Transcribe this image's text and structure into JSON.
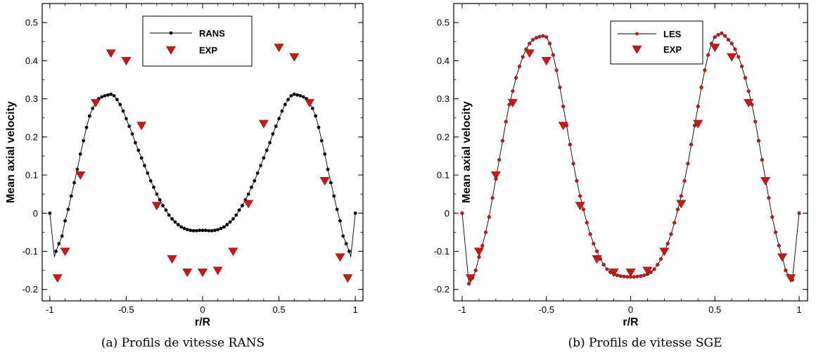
{
  "chart_data": [
    {
      "type": "line",
      "caption": "(a) Profils de vitesse RANS",
      "xlabel": "r/R",
      "ylabel": "Mean axial velocity",
      "xlim": [
        -1.05,
        1.05
      ],
      "ylim": [
        -0.23,
        0.55
      ],
      "xticks": [
        "-1",
        "-0.5",
        "0",
        "0.5",
        "1"
      ],
      "xtick_values": [
        -1,
        -0.5,
        0,
        0.5,
        1
      ],
      "yticks": [
        "-0.2",
        "-0.1",
        "0",
        "0.1",
        "0.2",
        "0.3",
        "0.4",
        "0.5"
      ],
      "ytick_values": [
        -0.2,
        -0.1,
        0,
        0.1,
        0.2,
        0.3,
        0.4,
        0.5
      ],
      "legend_position": "top-right",
      "series": [
        {
          "name": "RANS",
          "style": "line-with-markers",
          "color": "#000000",
          "x": [
            -1.0,
            -0.96,
            -0.94,
            -0.92,
            -0.9,
            -0.88,
            -0.86,
            -0.84,
            -0.82,
            -0.8,
            -0.78,
            -0.76,
            -0.74,
            -0.72,
            -0.7,
            -0.68,
            -0.66,
            -0.64,
            -0.62,
            -0.6,
            -0.58,
            -0.56,
            -0.54,
            -0.52,
            -0.5,
            -0.48,
            -0.46,
            -0.44,
            -0.42,
            -0.4,
            -0.38,
            -0.36,
            -0.34,
            -0.32,
            -0.3,
            -0.28,
            -0.26,
            -0.24,
            -0.22,
            -0.2,
            -0.18,
            -0.16,
            -0.14,
            -0.12,
            -0.1,
            -0.08,
            -0.06,
            -0.04,
            -0.02,
            0.0,
            0.02,
            0.04,
            0.06,
            0.08,
            0.1,
            0.12,
            0.14,
            0.16,
            0.18,
            0.2,
            0.22,
            0.24,
            0.26,
            0.28,
            0.3,
            0.32,
            0.34,
            0.36,
            0.38,
            0.4,
            0.42,
            0.44,
            0.46,
            0.48,
            0.5,
            0.52,
            0.54,
            0.56,
            0.58,
            0.6,
            0.62,
            0.64,
            0.66,
            0.68,
            0.7,
            0.72,
            0.74,
            0.76,
            0.78,
            0.8,
            0.82,
            0.84,
            0.86,
            0.88,
            0.9,
            0.92,
            0.94,
            0.96,
            1.0
          ],
          "y": [
            0.0,
            -0.1,
            -0.08,
            -0.06,
            -0.02,
            0.01,
            0.045,
            0.08,
            0.115,
            0.155,
            0.19,
            0.225,
            0.255,
            0.275,
            0.29,
            0.3,
            0.305,
            0.308,
            0.31,
            0.312,
            0.308,
            0.298,
            0.285,
            0.268,
            0.248,
            0.228,
            0.208,
            0.185,
            0.165,
            0.145,
            0.125,
            0.105,
            0.085,
            0.068,
            0.05,
            0.035,
            0.02,
            0.008,
            -0.005,
            -0.015,
            -0.023,
            -0.03,
            -0.036,
            -0.04,
            -0.043,
            -0.045,
            -0.046,
            -0.046,
            -0.045,
            -0.045,
            -0.045,
            -0.046,
            -0.046,
            -0.045,
            -0.043,
            -0.04,
            -0.036,
            -0.03,
            -0.023,
            -0.015,
            -0.005,
            0.008,
            0.02,
            0.035,
            0.05,
            0.068,
            0.085,
            0.105,
            0.125,
            0.145,
            0.165,
            0.185,
            0.208,
            0.228,
            0.248,
            0.268,
            0.285,
            0.298,
            0.308,
            0.312,
            0.31,
            0.308,
            0.305,
            0.3,
            0.29,
            0.275,
            0.255,
            0.225,
            0.19,
            0.155,
            0.115,
            0.08,
            0.045,
            0.01,
            -0.02,
            -0.06,
            -0.08,
            -0.1,
            0.0
          ],
          "line_x": [
            -1.0,
            -0.97,
            -0.96,
            -0.94,
            -0.92,
            -0.9,
            -0.88,
            -0.86,
            -0.84,
            -0.82,
            -0.8,
            -0.78,
            -0.76,
            -0.74,
            -0.72,
            -0.7,
            -0.68,
            -0.66,
            -0.64,
            -0.62,
            -0.6,
            -0.58,
            -0.56,
            -0.54,
            -0.52,
            -0.5,
            -0.48,
            -0.46,
            -0.44,
            -0.42,
            -0.4,
            -0.38,
            -0.36,
            -0.34,
            -0.32,
            -0.3,
            -0.28,
            -0.26,
            -0.24,
            -0.22,
            -0.2,
            -0.18,
            -0.16,
            -0.14,
            -0.12,
            -0.1,
            -0.08,
            -0.06,
            -0.04,
            -0.02,
            0.0,
            0.02,
            0.04,
            0.06,
            0.08,
            0.1,
            0.12,
            0.14,
            0.16,
            0.18,
            0.2,
            0.22,
            0.24,
            0.26,
            0.28,
            0.3,
            0.32,
            0.34,
            0.36,
            0.38,
            0.4,
            0.42,
            0.44,
            0.46,
            0.48,
            0.5,
            0.52,
            0.54,
            0.56,
            0.58,
            0.6,
            0.62,
            0.64,
            0.66,
            0.68,
            0.7,
            0.72,
            0.74,
            0.76,
            0.78,
            0.8,
            0.82,
            0.84,
            0.86,
            0.88,
            0.9,
            0.92,
            0.94,
            0.96,
            0.97,
            1.0
          ],
          "line_y": [
            0.0,
            -0.115,
            -0.1,
            -0.08,
            -0.06,
            -0.02,
            0.01,
            0.045,
            0.08,
            0.115,
            0.155,
            0.19,
            0.225,
            0.255,
            0.275,
            0.29,
            0.3,
            0.305,
            0.308,
            0.31,
            0.312,
            0.308,
            0.298,
            0.285,
            0.268,
            0.248,
            0.228,
            0.208,
            0.185,
            0.165,
            0.145,
            0.125,
            0.105,
            0.085,
            0.068,
            0.05,
            0.035,
            0.02,
            0.008,
            -0.005,
            -0.015,
            -0.023,
            -0.03,
            -0.036,
            -0.04,
            -0.043,
            -0.045,
            -0.046,
            -0.046,
            -0.045,
            -0.045,
            -0.045,
            -0.046,
            -0.046,
            -0.045,
            -0.043,
            -0.04,
            -0.036,
            -0.03,
            -0.023,
            -0.015,
            -0.005,
            0.008,
            0.02,
            0.035,
            0.05,
            0.068,
            0.085,
            0.105,
            0.125,
            0.145,
            0.165,
            0.185,
            0.208,
            0.228,
            0.248,
            0.268,
            0.285,
            0.298,
            0.308,
            0.312,
            0.31,
            0.308,
            0.305,
            0.3,
            0.29,
            0.275,
            0.255,
            0.225,
            0.19,
            0.155,
            0.115,
            0.08,
            0.045,
            0.01,
            -0.02,
            -0.06,
            -0.08,
            -0.1,
            -0.115,
            0.0
          ]
        },
        {
          "name": "EXP",
          "style": "triangle-down",
          "color": "#c41a1a",
          "x": [
            -0.95,
            -0.9,
            -0.8,
            -0.7,
            -0.6,
            -0.5,
            -0.4,
            -0.3,
            -0.2,
            -0.1,
            0.0,
            0.1,
            0.2,
            0.3,
            0.4,
            0.5,
            0.6,
            0.7,
            0.8,
            0.9,
            0.95
          ],
          "y": [
            -0.17,
            -0.1,
            0.1,
            0.29,
            0.42,
            0.4,
            0.23,
            0.02,
            -0.12,
            -0.155,
            -0.155,
            -0.15,
            -0.1,
            0.025,
            0.235,
            0.435,
            0.41,
            0.29,
            0.085,
            -0.115,
            -0.17
          ]
        }
      ]
    },
    {
      "type": "line",
      "caption": "(b) Profils de vitesse SGE",
      "xlabel": "r/R",
      "ylabel": "Mean axial velocity",
      "xlim": [
        -1.05,
        1.05
      ],
      "ylim": [
        -0.23,
        0.55
      ],
      "xticks": [
        "-1",
        "-0.5",
        "0",
        "0.5",
        "1"
      ],
      "xtick_values": [
        -1,
        -0.5,
        0,
        0.5,
        1
      ],
      "yticks": [
        "-0.2",
        "-0.1",
        "0",
        "0.1",
        "0.2",
        "0.3",
        "0.4",
        "0.5"
      ],
      "ytick_values": [
        -0.2,
        -0.1,
        0,
        0.1,
        0.2,
        0.3,
        0.4,
        0.5
      ],
      "legend_position": "top-right",
      "series": [
        {
          "name": "LES",
          "style": "line-with-markers",
          "color": "#b22222",
          "x": [
            -1.0,
            -0.96,
            -0.94,
            -0.92,
            -0.9,
            -0.88,
            -0.86,
            -0.84,
            -0.82,
            -0.8,
            -0.78,
            -0.76,
            -0.74,
            -0.72,
            -0.7,
            -0.68,
            -0.66,
            -0.64,
            -0.62,
            -0.6,
            -0.58,
            -0.56,
            -0.54,
            -0.52,
            -0.5,
            -0.48,
            -0.46,
            -0.44,
            -0.42,
            -0.4,
            -0.38,
            -0.36,
            -0.34,
            -0.32,
            -0.3,
            -0.28,
            -0.26,
            -0.24,
            -0.22,
            -0.2,
            -0.18,
            -0.16,
            -0.14,
            -0.12,
            -0.1,
            -0.08,
            -0.06,
            -0.04,
            -0.02,
            0.0,
            0.02,
            0.04,
            0.06,
            0.08,
            0.1,
            0.12,
            0.14,
            0.16,
            0.18,
            0.2,
            0.22,
            0.24,
            0.26,
            0.28,
            0.3,
            0.32,
            0.34,
            0.36,
            0.38,
            0.4,
            0.42,
            0.44,
            0.46,
            0.48,
            0.5,
            0.52,
            0.54,
            0.56,
            0.58,
            0.6,
            0.62,
            0.64,
            0.66,
            0.68,
            0.7,
            0.72,
            0.74,
            0.76,
            0.78,
            0.8,
            0.82,
            0.84,
            0.86,
            0.88,
            0.9,
            0.92,
            0.94,
            0.96,
            1.0
          ],
          "y": [
            0.0,
            -0.185,
            -0.17,
            -0.15,
            -0.115,
            -0.085,
            -0.05,
            -0.01,
            0.04,
            0.09,
            0.14,
            0.19,
            0.24,
            0.285,
            0.32,
            0.355,
            0.385,
            0.41,
            0.43,
            0.445,
            0.455,
            0.46,
            0.463,
            0.465,
            0.462,
            0.445,
            0.415,
            0.375,
            0.33,
            0.28,
            0.23,
            0.18,
            0.13,
            0.085,
            0.045,
            0.01,
            -0.025,
            -0.055,
            -0.08,
            -0.1,
            -0.12,
            -0.135,
            -0.147,
            -0.155,
            -0.16,
            -0.163,
            -0.165,
            -0.166,
            -0.167,
            -0.167,
            -0.167,
            -0.166,
            -0.165,
            -0.163,
            -0.16,
            -0.155,
            -0.147,
            -0.135,
            -0.12,
            -0.1,
            -0.08,
            -0.055,
            -0.025,
            0.01,
            0.045,
            0.085,
            0.13,
            0.18,
            0.23,
            0.28,
            0.33,
            0.375,
            0.415,
            0.445,
            0.462,
            0.468,
            0.472,
            0.465,
            0.455,
            0.445,
            0.43,
            0.41,
            0.385,
            0.355,
            0.32,
            0.285,
            0.24,
            0.19,
            0.14,
            0.09,
            0.04,
            -0.01,
            -0.05,
            -0.085,
            -0.115,
            -0.15,
            -0.165,
            -0.175,
            0.0
          ]
        },
        {
          "name": "EXP",
          "style": "triangle-down",
          "color": "#c41a1a",
          "x": [
            -0.95,
            -0.9,
            -0.8,
            -0.7,
            -0.6,
            -0.5,
            -0.4,
            -0.3,
            -0.2,
            -0.1,
            0.0,
            0.1,
            0.2,
            0.3,
            0.4,
            0.5,
            0.6,
            0.7,
            0.8,
            0.9,
            0.95
          ],
          "y": [
            -0.17,
            -0.1,
            0.1,
            0.29,
            0.42,
            0.4,
            0.23,
            0.02,
            -0.12,
            -0.155,
            -0.155,
            -0.15,
            -0.1,
            0.025,
            0.235,
            0.435,
            0.41,
            0.29,
            0.085,
            -0.115,
            -0.17
          ]
        }
      ]
    }
  ]
}
